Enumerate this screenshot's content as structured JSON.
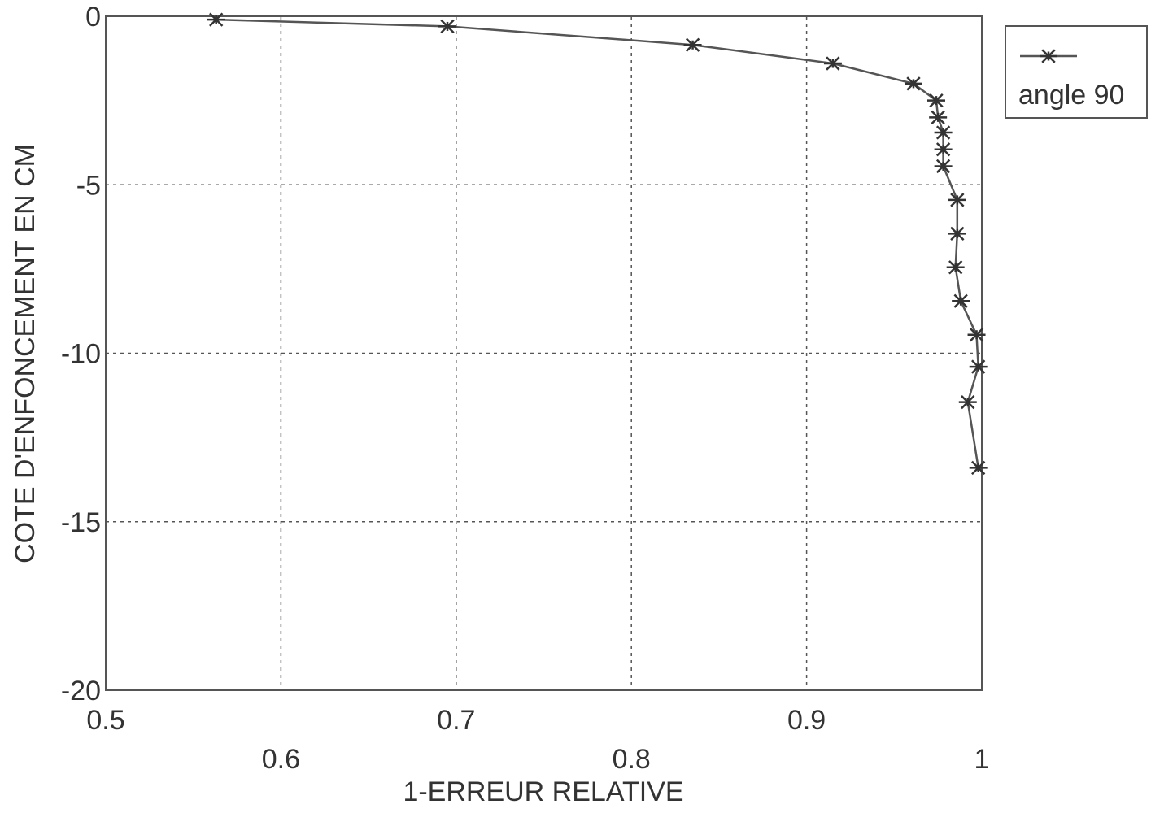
{
  "chart_data": {
    "type": "line",
    "xlabel": "1-ERREUR RELATIVE",
    "ylabel": "COTE D'ENFONCEMENT EN CM",
    "xlim": [
      0.5,
      1.0
    ],
    "ylim": [
      -20,
      0
    ],
    "x_ticks_upper": [
      "0.5",
      "0.7",
      "0.9"
    ],
    "x_ticks_lower": [
      "0.6",
      "0.8",
      "1"
    ],
    "y_ticks": [
      "0",
      "-5",
      "-10",
      "-15",
      "-20"
    ],
    "grid": true,
    "legend_position": "outside-top-right",
    "series": [
      {
        "name": "angle 90",
        "marker": "asterisk",
        "x": [
          0.563,
          0.695,
          0.835,
          0.915,
          0.961,
          0.974,
          0.975,
          0.978,
          0.978,
          0.978,
          0.986,
          0.986,
          0.985,
          0.988,
          0.997,
          0.998,
          0.992,
          0.998
        ],
        "y": [
          -0.1,
          -0.3,
          -0.85,
          -1.4,
          -2.0,
          -2.5,
          -3.0,
          -3.45,
          -3.95,
          -4.45,
          -5.45,
          -6.45,
          -7.45,
          -8.45,
          -9.45,
          -10.4,
          -11.45,
          -13.4
        ]
      }
    ]
  }
}
